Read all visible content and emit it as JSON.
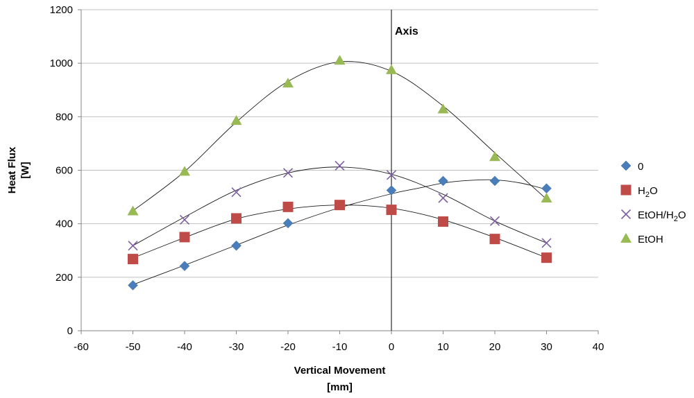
{
  "chart_data": {
    "type": "scatter",
    "xlabel": "Vertical Movement",
    "xlabel_unit": "[mm]",
    "ylabel": "Heat Flux",
    "ylabel_unit": "[W]",
    "xlim": [
      -60,
      40
    ],
    "ylim": [
      0,
      1200
    ],
    "x_ticks": [
      -60,
      -50,
      -40,
      -30,
      -20,
      -10,
      0,
      10,
      20,
      30,
      40
    ],
    "y_ticks": [
      0,
      200,
      400,
      600,
      800,
      1000,
      1200
    ],
    "grid": "horizontal",
    "legend_position": "right",
    "annotation": {
      "text": "Axis",
      "x": 0
    },
    "series": [
      {
        "name": "0",
        "marker": "diamond",
        "color": "#4a7ebb",
        "x": [
          -50,
          -40,
          -30,
          -20,
          -10,
          0,
          10,
          20,
          30
        ],
        "y": [
          170,
          242,
          318,
          402,
          470,
          525,
          560,
          560,
          532
        ],
        "trend": [
          [
            -50,
            172
          ],
          [
            -40,
            245
          ],
          [
            -30,
            320
          ],
          [
            -20,
            395
          ],
          [
            -10,
            460
          ],
          [
            0,
            512
          ],
          [
            5,
            532
          ],
          [
            10,
            552
          ],
          [
            15,
            562
          ],
          [
            20,
            564
          ],
          [
            25,
            552
          ],
          [
            30,
            528
          ]
        ]
      },
      {
        "name_parts": [
          "H",
          "2",
          "O"
        ],
        "marker": "square",
        "color": "#be4b48",
        "x": [
          -50,
          -40,
          -30,
          -20,
          -10,
          0,
          10,
          20,
          30
        ],
        "y": [
          268,
          350,
          420,
          463,
          470,
          452,
          408,
          343,
          273
        ],
        "trend": [
          [
            -50,
            272
          ],
          [
            -40,
            348
          ],
          [
            -30,
            418
          ],
          [
            -20,
            455
          ],
          [
            -10,
            470
          ],
          [
            0,
            458
          ],
          [
            10,
            415
          ],
          [
            20,
            348
          ],
          [
            30,
            273
          ]
        ]
      },
      {
        "name_parts": [
          "EtOH/H",
          "2",
          "O"
        ],
        "marker": "x",
        "color": "#7d5fa0",
        "x": [
          -50,
          -40,
          -30,
          -20,
          -10,
          0,
          10,
          20,
          30
        ],
        "y": [
          318,
          415,
          518,
          590,
          617,
          582,
          496,
          410,
          328
        ],
        "trend": [
          [
            -50,
            318
          ],
          [
            -40,
            425
          ],
          [
            -30,
            525
          ],
          [
            -20,
            590
          ],
          [
            -10,
            612
          ],
          [
            0,
            585
          ],
          [
            10,
            510
          ],
          [
            20,
            410
          ],
          [
            30,
            328
          ]
        ]
      },
      {
        "name": "EtOH",
        "marker": "triangle",
        "color": "#98b954",
        "x": [
          -50,
          -40,
          -30,
          -20,
          -10,
          0,
          10,
          20,
          30
        ],
        "y": [
          447,
          595,
          785,
          925,
          1010,
          975,
          828,
          650,
          495
        ],
        "trend": [
          [
            -50,
            448
          ],
          [
            -40,
            595
          ],
          [
            -30,
            780
          ],
          [
            -20,
            932
          ],
          [
            -10,
            1005
          ],
          [
            0,
            970
          ],
          [
            10,
            840
          ],
          [
            20,
            665
          ],
          [
            30,
            492
          ]
        ]
      }
    ]
  }
}
